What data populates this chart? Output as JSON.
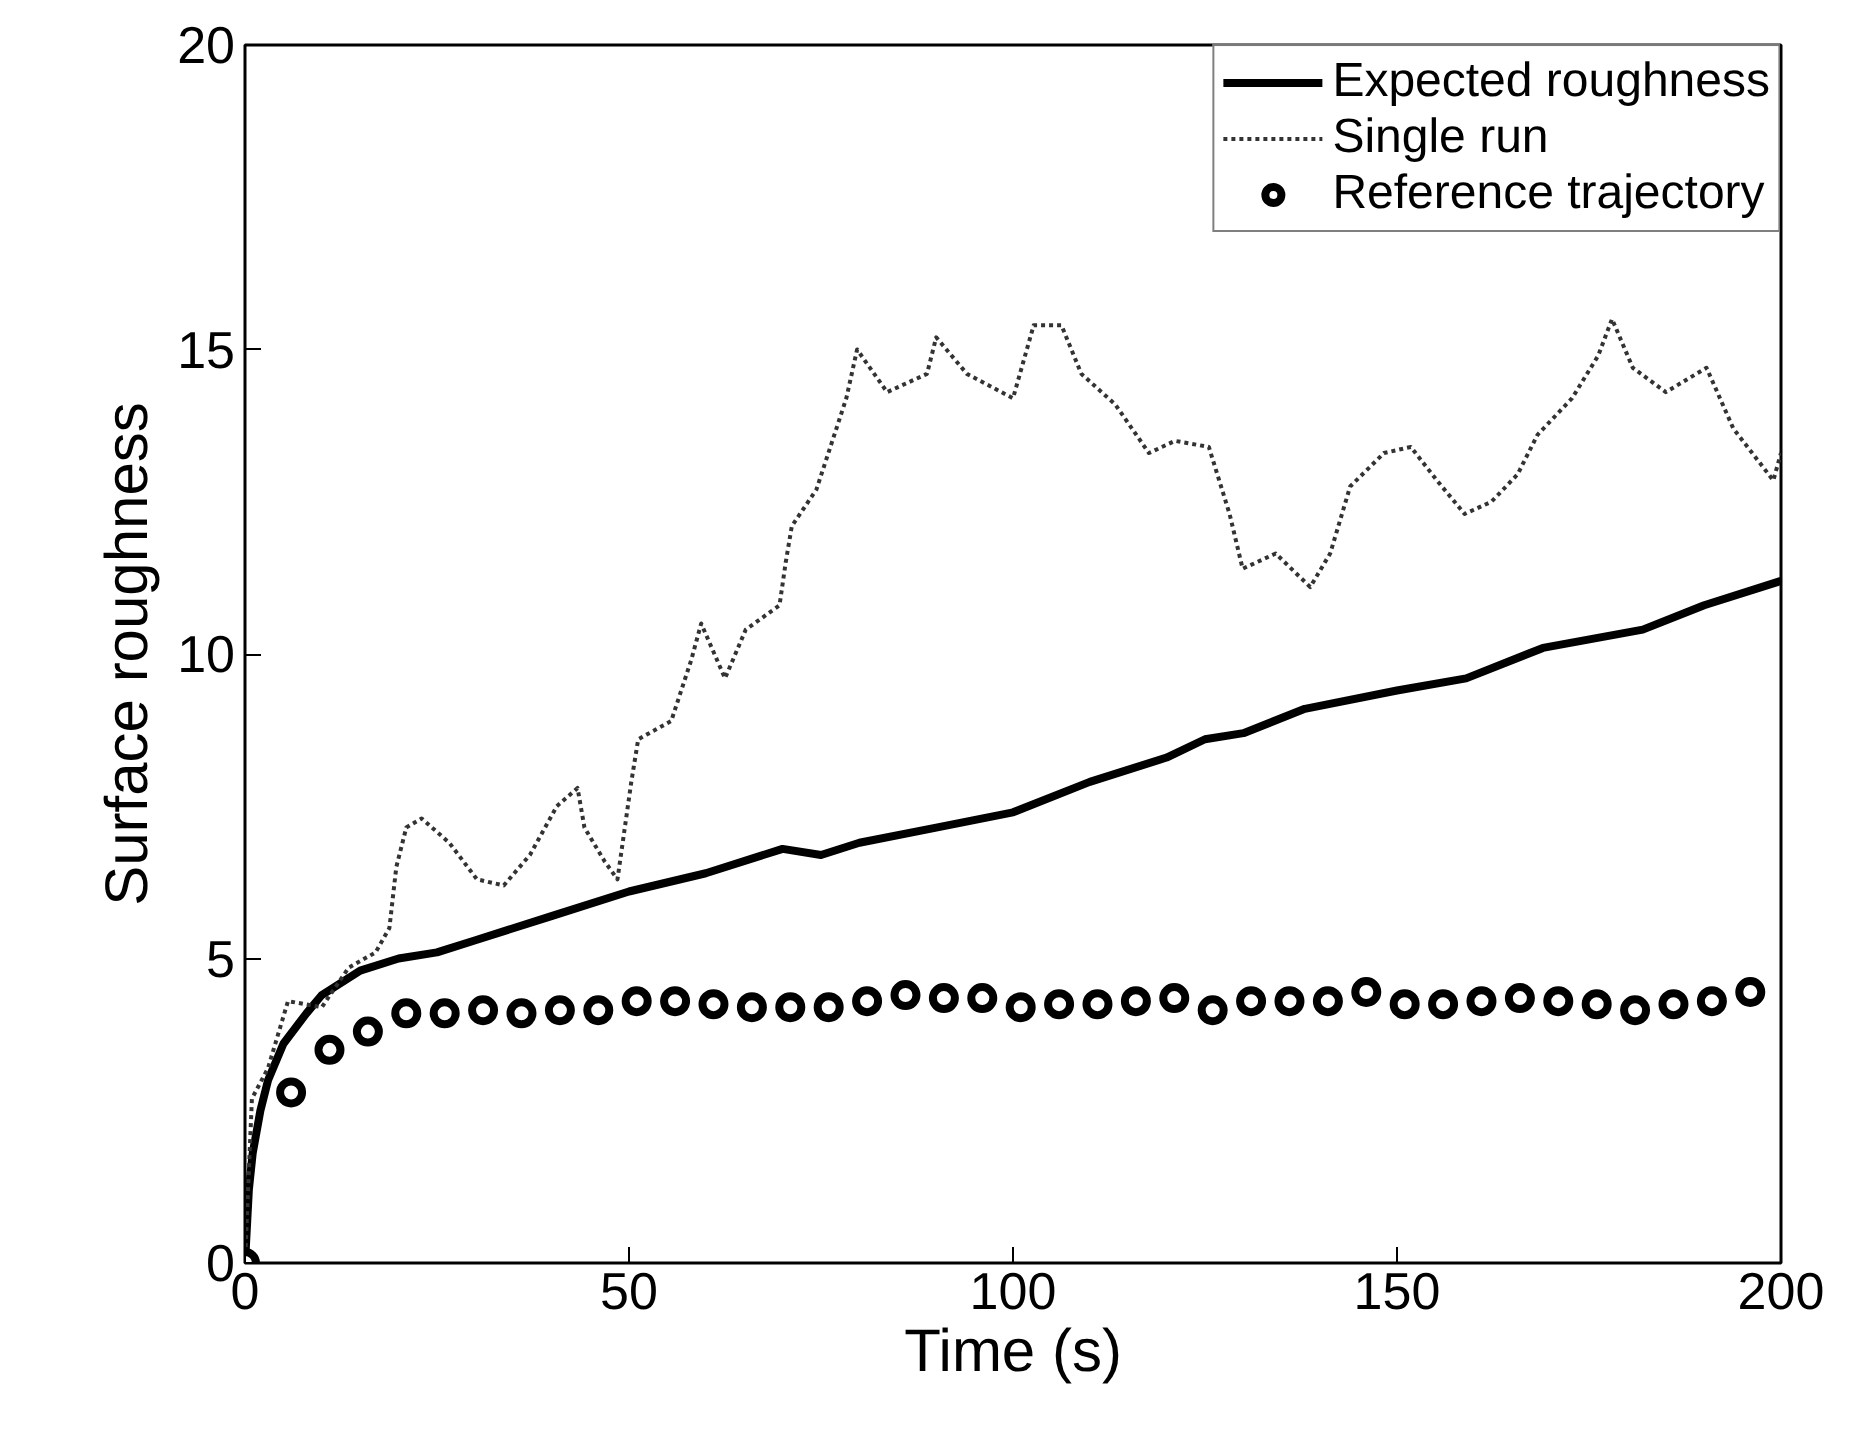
{
  "chart_data": {
    "type": "line",
    "xlabel": "Time (s)",
    "ylabel": "Surface roughness",
    "xlim": [
      0,
      200
    ],
    "ylim": [
      0,
      20
    ],
    "xticks": [
      0,
      50,
      100,
      150,
      200
    ],
    "yticks": [
      0,
      5,
      10,
      15,
      20
    ],
    "grid": false,
    "legend": "top right",
    "series": [
      {
        "name": "Expected roughness",
        "line_style": "solid",
        "marker": "none",
        "color": "#000000",
        "x": [
          0,
          0.5,
          1,
          2,
          3,
          5,
          8,
          10,
          15,
          20,
          25,
          30,
          40,
          50,
          60,
          70,
          75,
          80,
          90,
          100,
          110,
          120,
          125,
          130,
          138,
          150,
          159,
          169,
          182,
          190,
          200
        ],
        "values": [
          0,
          1.2,
          1.8,
          2.5,
          3.0,
          3.6,
          4.1,
          4.4,
          4.8,
          5.0,
          5.1,
          5.3,
          5.7,
          6.1,
          6.4,
          6.8,
          6.7,
          6.9,
          7.15,
          7.4,
          7.9,
          8.3,
          8.6,
          8.7,
          9.1,
          9.4,
          9.6,
          10.1,
          10.4,
          10.8,
          11.2
        ]
      },
      {
        "name": "Single run",
        "line_style": "dotted",
        "marker": "none",
        "color": "#333333",
        "x": [
          0,
          0.9,
          3,
          5.6,
          10,
          13.5,
          17,
          18.8,
          19.7,
          21,
          23,
          26.6,
          30.2,
          33.7,
          37.1,
          40.6,
          43.3,
          44.2,
          46.8,
          48.5,
          50.3,
          51.2,
          55.5,
          58.1,
          59.4,
          62.5,
          65.2,
          69.6,
          70.4,
          71.2,
          74.4,
          78.3,
          79.7,
          83.6,
          88.8,
          90,
          94,
          100,
          102.7,
          106.3,
          108.9,
          113.3,
          117.7,
          121.1,
          125.5,
          128.2,
          129.9,
          134.2,
          138.7,
          141.3,
          143.9,
          148.3,
          151.8,
          155.2,
          158.8,
          162.3,
          165.7,
          168.3,
          172.8,
          176.2,
          178,
          180.7,
          185,
          190.3,
          193.8,
          199,
          200
        ],
        "values": [
          0,
          2.7,
          3.2,
          4.3,
          4.2,
          4.85,
          5.1,
          5.5,
          6.5,
          7.15,
          7.3,
          6.9,
          6.3,
          6.2,
          6.7,
          7.5,
          7.8,
          7.15,
          6.6,
          6.3,
          7.9,
          8.6,
          8.9,
          9.9,
          10.5,
          9.6,
          10.4,
          10.8,
          11.5,
          12.1,
          12.7,
          14.2,
          15.0,
          14.3,
          14.6,
          15.2,
          14.6,
          14.2,
          15.4,
          15.4,
          14.6,
          14.1,
          13.3,
          13.5,
          13.4,
          12.3,
          11.4,
          11.65,
          11.1,
          11.65,
          12.75,
          13.3,
          13.4,
          12.85,
          12.3,
          12.5,
          12.95,
          13.6,
          14.2,
          14.9,
          15.5,
          14.7,
          14.3,
          14.7,
          13.7,
          12.85,
          13.3
        ]
      },
      {
        "name": "Reference trajectory",
        "type": "scatter",
        "marker": "circle",
        "color": "#000000",
        "x": [
          0,
          6,
          11,
          16,
          21,
          26,
          31,
          36,
          41,
          46,
          51,
          56,
          61,
          66,
          71,
          76,
          81,
          86,
          91,
          96,
          101,
          106,
          111,
          116,
          121,
          126,
          131,
          136,
          141,
          146,
          151,
          156,
          161,
          166,
          171,
          176,
          181,
          186,
          191,
          196
        ],
        "values": [
          0,
          2.8,
          3.5,
          3.8,
          4.1,
          4.1,
          4.15,
          4.1,
          4.15,
          4.15,
          4.3,
          4.3,
          4.25,
          4.2,
          4.2,
          4.2,
          4.3,
          4.4,
          4.35,
          4.35,
          4.2,
          4.25,
          4.25,
          4.3,
          4.35,
          4.15,
          4.3,
          4.3,
          4.3,
          4.45,
          4.25,
          4.25,
          4.3,
          4.35,
          4.3,
          4.25,
          4.15,
          4.25,
          4.3,
          4.45
        ]
      }
    ]
  }
}
